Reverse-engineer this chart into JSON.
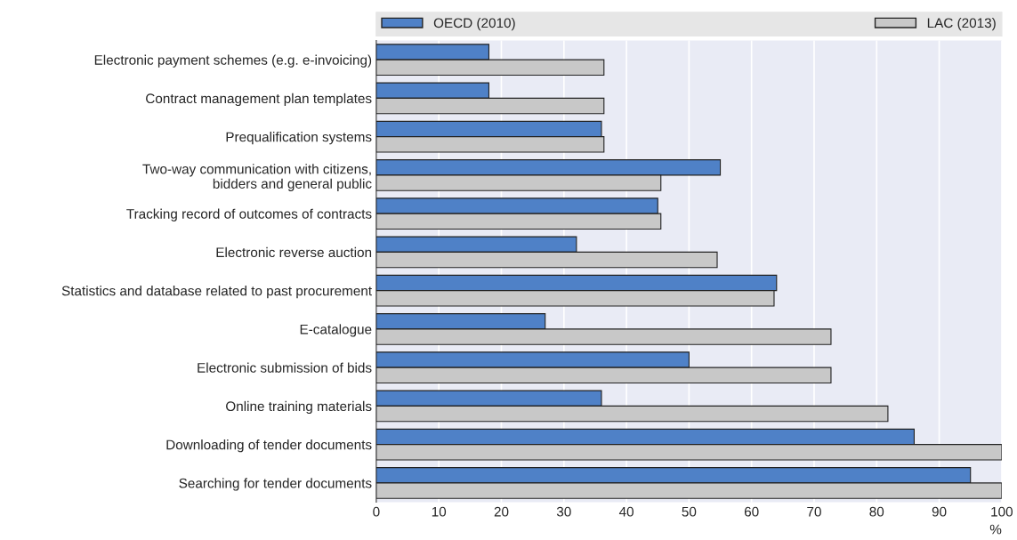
{
  "chart_data": {
    "type": "bar",
    "orientation": "horizontal",
    "categories": [
      "Electronic payment schemes (e.g. e-invoicing)",
      "Contract management plan templates",
      "Prequalification systems",
      "Two-way communication with citizens,\nbidders and general public",
      "Tracking record of outcomes of contracts",
      "Electronic reverse auction",
      "Statistics and database related to past procurement",
      "E-catalogue",
      "Electronic submission of bids",
      "Online training materials",
      "Downloading of tender documents",
      "Searching for tender documents"
    ],
    "series": [
      {
        "name": "OECD (2010)",
        "color": "#4f81c7",
        "values": [
          18,
          18,
          36,
          55,
          45,
          32,
          64,
          27,
          50,
          36,
          86,
          95
        ]
      },
      {
        "name": "LAC (2013)",
        "color": "#c8c8c8",
        "values": [
          36.4,
          36.4,
          36.4,
          45.5,
          45.5,
          54.5,
          63.6,
          72.7,
          72.7,
          81.8,
          100,
          100
        ]
      }
    ],
    "xlim": [
      0,
      100
    ],
    "xticks": [
      0,
      10,
      20,
      30,
      40,
      50,
      60,
      70,
      80,
      90,
      100
    ],
    "xlabel": "%",
    "grid": "x",
    "legend": "top"
  }
}
